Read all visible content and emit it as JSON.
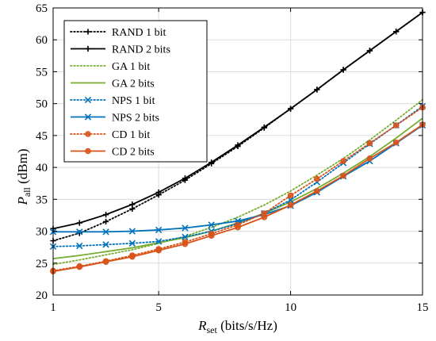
{
  "chart_data": {
    "type": "line",
    "xlabel": {
      "main": "R",
      "sub": "set",
      "unit": " (bits/s/Hz)"
    },
    "ylabel": {
      "main": "P",
      "sub": "all",
      "unit": " (dBm)"
    },
    "xlim": [
      1,
      15
    ],
    "ylim": [
      20,
      65
    ],
    "xticks": [
      1,
      5,
      10,
      15
    ],
    "yticks": [
      20,
      25,
      30,
      35,
      40,
      45,
      50,
      55,
      60,
      65
    ],
    "grid": true,
    "legend_position": "top-left",
    "x": [
      1,
      2,
      3,
      4,
      5,
      6,
      7,
      8,
      9,
      10,
      11,
      12,
      13,
      14,
      15
    ],
    "series": [
      {
        "name": "RAND 1 bit",
        "color": "#000000",
        "style": "dotted",
        "marker": "plus",
        "values": [
          28.5,
          29.7,
          31.5,
          33.5,
          35.7,
          38.0,
          40.6,
          43.3,
          46.2,
          49.2,
          52.2,
          55.3,
          58.3,
          61.3,
          64.3
        ]
      },
      {
        "name": "RAND 2 bits",
        "color": "#000000",
        "style": "solid",
        "marker": "plus",
        "values": [
          30.4,
          31.3,
          32.6,
          34.2,
          36.1,
          38.3,
          40.8,
          43.5,
          46.3,
          49.2,
          52.2,
          55.3,
          58.3,
          61.3,
          64.3
        ]
      },
      {
        "name": "GA 1 bit",
        "color": "#77AC30",
        "style": "dotted",
        "marker": "none",
        "values": [
          24.8,
          25.5,
          26.3,
          27.1,
          28.1,
          29.2,
          30.6,
          32.2,
          34.1,
          36.3,
          38.8,
          41.4,
          44.3,
          47.4,
          50.6
        ]
      },
      {
        "name": "GA 2 bits",
        "color": "#77AC30",
        "style": "solid",
        "marker": "none",
        "values": [
          25.7,
          26.2,
          26.8,
          27.4,
          28.2,
          29.0,
          30.0,
          31.3,
          32.8,
          34.6,
          36.7,
          39.1,
          41.7,
          44.6,
          47.7
        ]
      },
      {
        "name": "NPS 1 bit",
        "color": "#0072BD",
        "style": "dotted",
        "marker": "x",
        "values": [
          27.6,
          27.7,
          27.9,
          28.1,
          28.4,
          29.1,
          30.0,
          31.2,
          32.8,
          34.9,
          37.7,
          40.7,
          43.7,
          46.6,
          49.6
        ]
      },
      {
        "name": "NPS 2 bits",
        "color": "#0072BD",
        "style": "solid",
        "marker": "x",
        "values": [
          29.9,
          29.9,
          29.9,
          30.0,
          30.2,
          30.5,
          31.0,
          31.6,
          32.6,
          34.0,
          36.1,
          38.6,
          41.0,
          43.8,
          46.6
        ]
      },
      {
        "name": "CD 1 bit",
        "color": "#D95319",
        "style": "dotted",
        "marker": "circle",
        "values": [
          23.8,
          24.5,
          25.3,
          26.2,
          27.2,
          28.3,
          29.6,
          31.0,
          32.8,
          35.6,
          38.2,
          41.0,
          43.8,
          46.6,
          49.4
        ]
      },
      {
        "name": "CD 2 bits",
        "color": "#D95319",
        "style": "solid",
        "marker": "circle",
        "values": [
          23.7,
          24.4,
          25.2,
          26.0,
          27.0,
          28.0,
          29.3,
          30.6,
          32.2,
          34.1,
          36.3,
          38.7,
          41.4,
          43.9,
          46.7
        ]
      }
    ]
  }
}
